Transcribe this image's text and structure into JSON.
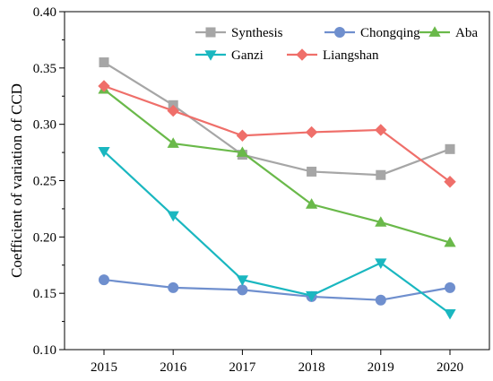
{
  "chart_data": {
    "type": "line",
    "title": "",
    "xlabel": "",
    "ylabel": "Coefficient of variation of CCD",
    "categories": [
      "2015",
      "2016",
      "2017",
      "2018",
      "2019",
      "2020"
    ],
    "ylim": [
      0.1,
      0.4
    ],
    "yticks": [
      "0.10",
      "0.15",
      "0.20",
      "0.25",
      "0.30",
      "0.35",
      "0.40"
    ],
    "grid": false,
    "legend_position": "top-right",
    "series": [
      {
        "name": "Synthesis",
        "color": "#a6a6a6",
        "marker": "square",
        "values": [
          0.355,
          0.317,
          0.273,
          0.258,
          0.255,
          0.278
        ]
      },
      {
        "name": "Chongqing",
        "color": "#6f8fce",
        "marker": "circle",
        "values": [
          0.162,
          0.155,
          0.153,
          0.147,
          0.144,
          0.155
        ]
      },
      {
        "name": "Aba",
        "color": "#6ab94a",
        "marker": "triangle-up",
        "values": [
          0.331,
          0.283,
          0.275,
          0.229,
          0.213,
          0.195
        ]
      },
      {
        "name": "Ganzi",
        "color": "#1ab7c0",
        "marker": "triangle-down",
        "values": [
          0.276,
          0.219,
          0.162,
          0.148,
          0.177,
          0.132
        ]
      },
      {
        "name": "Liangshan",
        "color": "#ef6f6a",
        "marker": "diamond",
        "values": [
          0.334,
          0.312,
          0.29,
          0.293,
          0.295,
          0.249
        ]
      }
    ]
  }
}
